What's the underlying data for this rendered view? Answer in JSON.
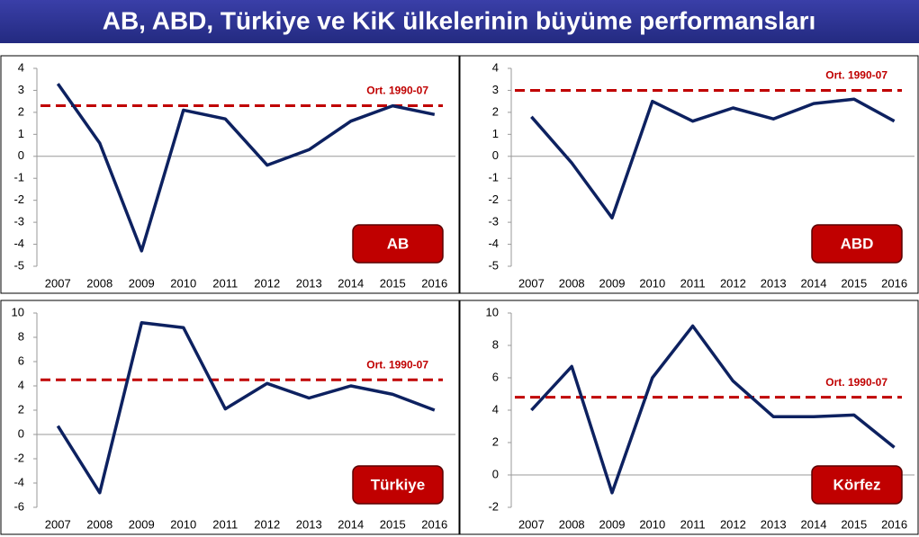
{
  "title": "AB, ABD, Türkiye ve KiK ülkelerinin büyüme performansları",
  "chart_data": [
    {
      "type": "line",
      "panel_label": "AB",
      "categories": [
        "2007",
        "2008",
        "2009",
        "2010",
        "2011",
        "2012",
        "2013",
        "2014",
        "2015",
        "2016"
      ],
      "values": [
        3.3,
        0.6,
        -4.3,
        2.1,
        1.7,
        -0.4,
        0.3,
        1.6,
        2.3,
        1.9
      ],
      "color": "#0d2160",
      "reference_line": {
        "value": 2.3,
        "label": "Ort. 1990-07",
        "color": "#c00000"
      },
      "ylim": [
        -5,
        4
      ],
      "yticks": [
        -5,
        -4,
        -3,
        -2,
        -1,
        0,
        1,
        2,
        3,
        4
      ]
    },
    {
      "type": "line",
      "panel_label": "ABD",
      "categories": [
        "2007",
        "2008",
        "2009",
        "2010",
        "2011",
        "2012",
        "2013",
        "2014",
        "2015",
        "2016"
      ],
      "values": [
        1.8,
        -0.3,
        -2.8,
        2.5,
        1.6,
        2.2,
        1.7,
        2.4,
        2.6,
        1.6
      ],
      "color": "#0d2160",
      "reference_line": {
        "value": 3.0,
        "label": "Ort. 1990-07",
        "color": "#c00000"
      },
      "ylim": [
        -5,
        4
      ],
      "yticks": [
        -5,
        -4,
        -3,
        -2,
        -1,
        0,
        1,
        2,
        3,
        4
      ]
    },
    {
      "type": "line",
      "panel_label": "Türkiye",
      "categories": [
        "2007",
        "2008",
        "2009",
        "2010",
        "2011",
        "2012",
        "2013",
        "2014",
        "2015",
        "2016"
      ],
      "values": [
        0.7,
        -4.8,
        9.2,
        8.8,
        2.1,
        4.2,
        3.0,
        4.0,
        3.3,
        2.0
      ],
      "color": "#0d2160",
      "reference_line": {
        "value": 4.5,
        "label": "Ort. 1990-07",
        "color": "#c00000"
      },
      "ylim": [
        -6,
        10
      ],
      "yticks": [
        -6,
        -4,
        -2,
        0,
        2,
        4,
        6,
        8,
        10
      ]
    },
    {
      "type": "line",
      "panel_label": "Körfez",
      "categories": [
        "2007",
        "2008",
        "2009",
        "2010",
        "2011",
        "2012",
        "2013",
        "2014",
        "2015",
        "2016"
      ],
      "values": [
        4.0,
        6.7,
        -1.1,
        6.0,
        9.2,
        5.8,
        3.6,
        3.6,
        3.7,
        1.7
      ],
      "color": "#0d2160",
      "reference_line": {
        "value": 4.8,
        "label": "Ort. 1990-07",
        "color": "#c00000"
      },
      "ylim": [
        -2,
        10
      ],
      "yticks": [
        -2,
        0,
        2,
        4,
        6,
        8,
        10
      ]
    }
  ]
}
